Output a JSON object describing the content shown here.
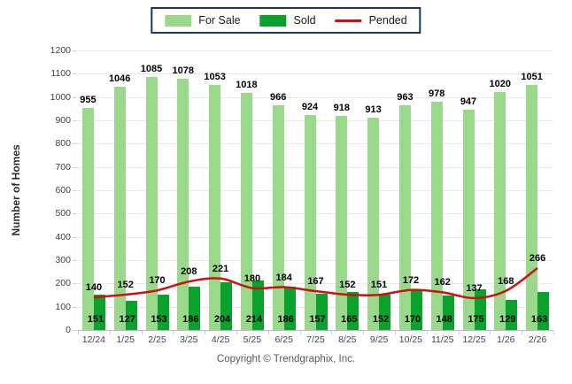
{
  "legend": {
    "border_color": "#17375e",
    "items": [
      {
        "label": "For Sale",
        "color": "#9ad98c",
        "type": "swatch"
      },
      {
        "label": "Sold",
        "color": "#0aa22d",
        "type": "swatch"
      },
      {
        "label": "Pended",
        "color": "#cc1111",
        "type": "line"
      }
    ]
  },
  "footer": {
    "text": "Copyright © Trendgraphix, Inc."
  },
  "chart_data": {
    "type": "bar",
    "title": "",
    "xlabel": "",
    "ylabel": "Number of Homes",
    "ylim": [
      0,
      1200
    ],
    "ytick_step": 100,
    "grid": true,
    "legend_position": "top-center",
    "categories": [
      "12/24",
      "1/25",
      "2/25",
      "3/25",
      "4/25",
      "5/25",
      "6/25",
      "7/25",
      "8/25",
      "9/25",
      "10/25",
      "11/25",
      "12/25",
      "1/26",
      "2/26"
    ],
    "series": [
      {
        "name": "For Sale",
        "type": "bar",
        "color": "#9ad98c",
        "values": [
          955,
          1046,
          1085,
          1078,
          1053,
          1018,
          966,
          924,
          918,
          913,
          963,
          978,
          947,
          1020,
          1051
        ]
      },
      {
        "name": "Sold",
        "type": "bar",
        "color": "#0aa22d",
        "values": [
          151,
          127,
          153,
          186,
          204,
          214,
          186,
          157,
          165,
          152,
          170,
          148,
          175,
          129,
          163
        ]
      },
      {
        "name": "Pended",
        "type": "line",
        "color": "#cc1111",
        "values": [
          140,
          152,
          170,
          208,
          221,
          180,
          184,
          167,
          152,
          151,
          172,
          162,
          137,
          168,
          266
        ]
      }
    ]
  }
}
